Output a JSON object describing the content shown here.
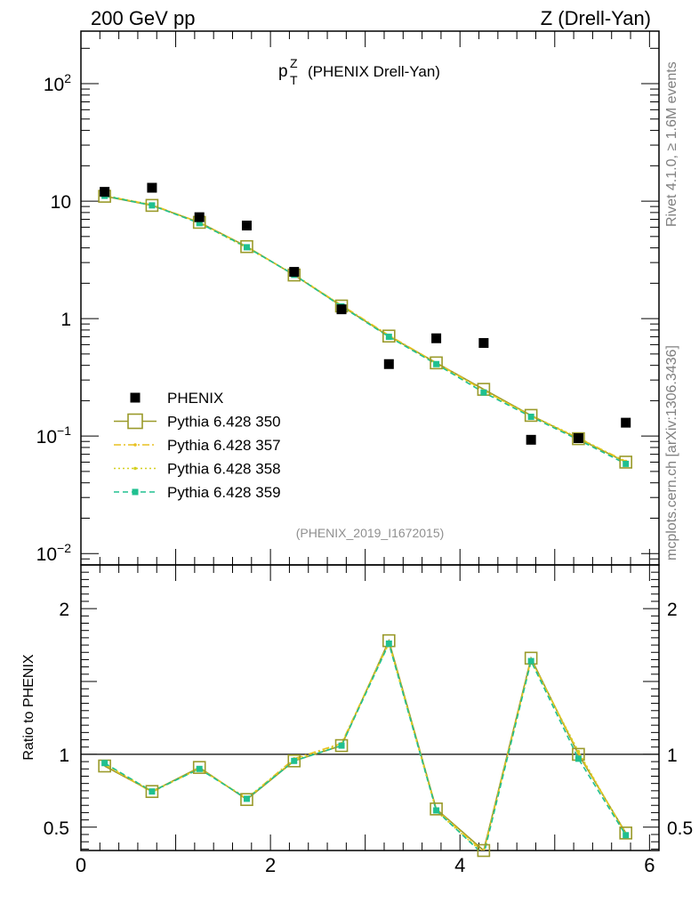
{
  "header": {
    "left": "200 GeV pp",
    "right": "Z (Drell-Yan)"
  },
  "side_text": {
    "rivet": "Rivet 4.1.0, ≥ 1.6M events",
    "mcplots": "mcplots.cern.ch [arXiv:1306.3436]"
  },
  "chart_data": {
    "type": "scatter",
    "title_main": "p",
    "title_sup": "Z",
    "title_sub": "T",
    "title_rest": "(PHENIX Drell-Yan)",
    "analysis_tag": "(PHENIX_2019_I1672015)",
    "x": [
      0.25,
      0.75,
      1.25,
      1.75,
      2.25,
      2.75,
      3.25,
      3.75,
      4.25,
      4.75,
      5.25,
      5.75
    ],
    "xlim": [
      0,
      6.1
    ],
    "ylim": [
      0.008,
      280
    ],
    "yscale": "log",
    "y_ticks": [
      {
        "v": 0.01,
        "base": "10",
        "exp": "−2"
      },
      {
        "v": 0.1,
        "base": "10",
        "exp": "−1"
      },
      {
        "v": 1,
        "base": "1",
        "exp": ""
      },
      {
        "v": 10,
        "base": "10",
        "exp": ""
      },
      {
        "v": 100,
        "base": "10",
        "exp": "2"
      }
    ],
    "x_ticks": [
      {
        "v": 0,
        "label": "0"
      },
      {
        "v": 2,
        "label": "2"
      },
      {
        "v": 4,
        "label": "4"
      },
      {
        "v": 6,
        "label": "6"
      }
    ],
    "data": {
      "name": "PHENIX",
      "color": "#000000",
      "values": [
        12.0,
        13.0,
        7.3,
        6.2,
        2.5,
        1.2,
        0.41,
        0.68,
        0.62,
        0.093,
        0.096,
        0.13
      ]
    },
    "series": [
      {
        "name": "Pythia 6.428 350",
        "color": "#9a9a2a",
        "style": "solid",
        "marker": "open-square",
        "values": [
          11.0,
          9.2,
          6.6,
          4.1,
          2.35,
          1.28,
          0.71,
          0.42,
          0.25,
          0.15,
          0.095,
          0.06
        ],
        "ratio": [
          0.92,
          0.745,
          0.91,
          0.69,
          0.955,
          1.06,
          1.78,
          0.625,
          0.34,
          1.66,
          1.0,
          0.46
        ]
      },
      {
        "name": "Pythia 6.428 357",
        "color": "#e8c020",
        "style": "dashdot",
        "marker": "small",
        "values": [
          11.1,
          9.3,
          6.6,
          4.1,
          2.35,
          1.3,
          0.72,
          0.42,
          0.245,
          0.148,
          0.096,
          0.061
        ],
        "ratio": [
          0.93,
          0.74,
          0.905,
          0.695,
          0.97,
          1.075,
          1.77,
          0.62,
          0.33,
          1.65,
          1.01,
          0.455
        ]
      },
      {
        "name": "Pythia 6.428 358",
        "color": "#d4d020",
        "style": "dotted",
        "marker": "small",
        "values": [
          11.2,
          9.3,
          6.5,
          4.0,
          2.38,
          1.29,
          0.71,
          0.41,
          0.24,
          0.15,
          0.097,
          0.06
        ],
        "ratio": [
          0.935,
          0.748,
          0.9,
          0.7,
          0.96,
          1.07,
          1.76,
          0.61,
          0.32,
          1.64,
          1.02,
          0.45
        ]
      },
      {
        "name": "Pythia 6.428 359",
        "color": "#20c090",
        "style": "dashed",
        "marker": "filled-square",
        "values": [
          11.1,
          9.2,
          6.5,
          4.05,
          2.36,
          1.27,
          0.7,
          0.41,
          0.235,
          0.146,
          0.093,
          0.058
        ],
        "ratio": [
          0.94,
          0.745,
          0.9,
          0.695,
          0.955,
          1.06,
          1.76,
          0.615,
          0.31,
          1.64,
          0.97,
          0.445
        ]
      }
    ],
    "ratio_panel": {
      "ylabel": "Ratio to PHENIX",
      "ylim": [
        0.34,
        2.3
      ],
      "ticks": [
        {
          "v": 0.5,
          "label": "0.5"
        },
        {
          "v": 1,
          "label": "1"
        },
        {
          "v": 2,
          "label": "2"
        }
      ]
    }
  }
}
